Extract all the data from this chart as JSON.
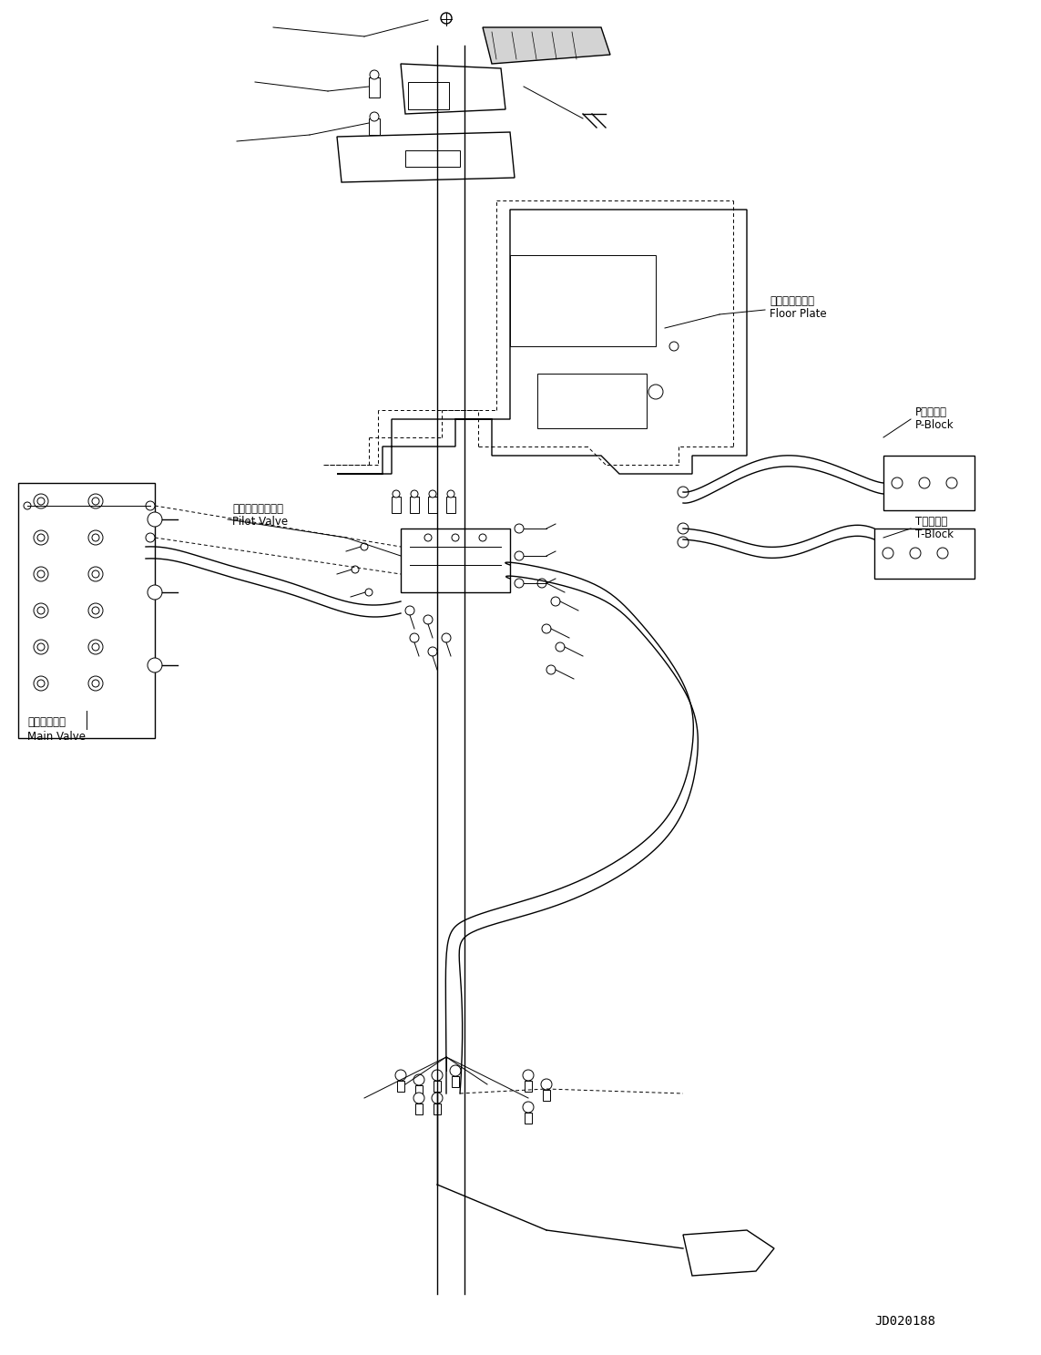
{
  "bg_color": "#ffffff",
  "line_color": "#000000",
  "title_code": "JD020188",
  "labels": {
    "floor_plate_jp": "フロアプレート",
    "floor_plate_en": "Floor Plate",
    "pilot_valve_jp": "パイロットバルブ",
    "pilot_valve_en": "Pilot Valve",
    "main_valve_jp": "メインバルブ",
    "main_valve_en": "Main Valve",
    "p_block_jp": "Pブロック",
    "p_block_en": "P-Block",
    "t_block_jp": "Tブロック",
    "t_block_en": "T-Block"
  },
  "font_sizes": {
    "label": 8.5,
    "code": 10
  }
}
